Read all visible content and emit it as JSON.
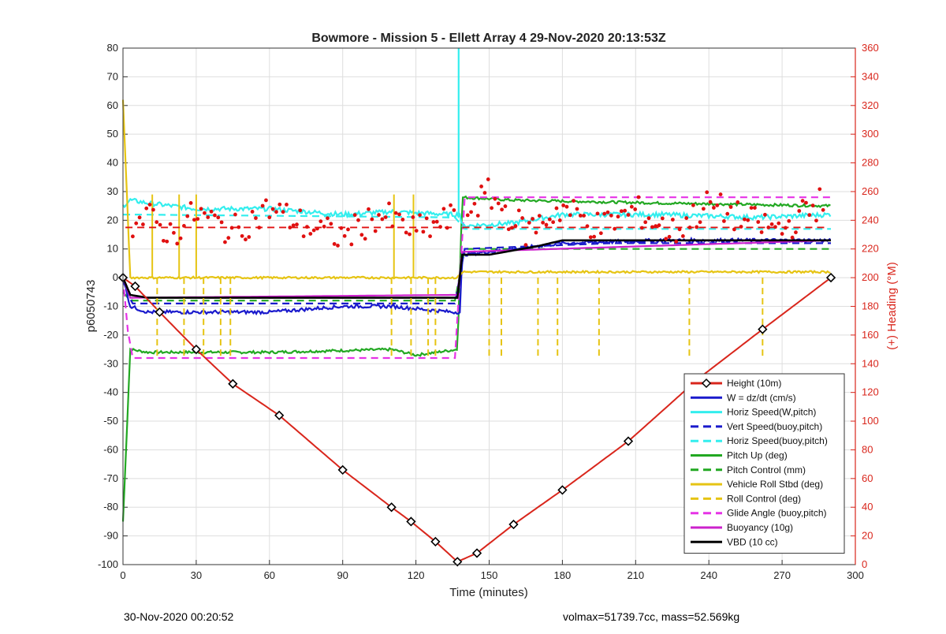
{
  "footer": {
    "timestamp": "30-Nov-2020 00:20:52",
    "stats": "volmax=51739.7cc, mass=52.569kg"
  },
  "chart_data": {
    "type": "line",
    "title": "Bowmore - Mission 5 - Ellett Array 4 29-Nov-2020 20:13:53Z",
    "xlabel": "Time (minutes)",
    "ylabel": "p6050743",
    "ylabel_right": "(+) Heading (°M)",
    "xlim": [
      0,
      300
    ],
    "ylim": [
      -100,
      80
    ],
    "ylim_right": [
      0,
      360
    ],
    "xticks": [
      0,
      30,
      60,
      90,
      120,
      150,
      180,
      210,
      240,
      270,
      300
    ],
    "yticks": [
      -100,
      -90,
      -80,
      -70,
      -60,
      -50,
      -40,
      -30,
      -20,
      -10,
      0,
      10,
      20,
      30,
      40,
      50,
      60,
      70,
      80
    ],
    "yticks_right": [
      0,
      20,
      40,
      60,
      80,
      100,
      120,
      140,
      160,
      180,
      200,
      220,
      240,
      260,
      280,
      300,
      320,
      340,
      360
    ],
    "grid": true,
    "legend_position": "bottom-right",
    "colors": {
      "height": "#d9261c",
      "w": "#1a1acc",
      "horiz_speed": "#33eeee",
      "pitch": "#22a822",
      "roll": "#e6c413",
      "glide": "#e633e6",
      "buoyancy": "#cc22cc",
      "vbd": "#000000",
      "heading": "#e01010",
      "right_axis": "#d9261c"
    },
    "legend": [
      {
        "label": "Height (10m)",
        "color": "#d9261c",
        "dash": false,
        "marker": true
      },
      {
        "label": "W = dz/dt (cm/s)",
        "color": "#1a1acc",
        "dash": false
      },
      {
        "label": "Horiz Speed(W,pitch)",
        "color": "#33eeee",
        "dash": false
      },
      {
        "label": "Vert Speed(buoy,pitch)",
        "color": "#1a1acc",
        "dash": true
      },
      {
        "label": "Horiz Speed(buoy,pitch)",
        "color": "#33eeee",
        "dash": true
      },
      {
        "label": "Pitch Up (deg)",
        "color": "#22a822",
        "dash": false
      },
      {
        "label": "Pitch Control (mm)",
        "color": "#22a822",
        "dash": true
      },
      {
        "label": "Vehicle Roll Stbd (deg)",
        "color": "#e6c413",
        "dash": false
      },
      {
        "label": "Roll Control (deg)",
        "color": "#e6c413",
        "dash": true
      },
      {
        "label": "Glide Angle (buoy,pitch)",
        "color": "#e633e6",
        "dash": true
      },
      {
        "label": "Buoyancy (10g)",
        "color": "#cc22cc",
        "dash": false
      },
      {
        "label": "VBD (10 cc)",
        "color": "#000000",
        "dash": false
      }
    ],
    "series": {
      "height": {
        "x": [
          0,
          5,
          15,
          30,
          45,
          64,
          90,
          110,
          118,
          128,
          137,
          145,
          160,
          180,
          207,
          236,
          262,
          290
        ],
        "y": [
          0,
          -3,
          -12,
          -25,
          -37,
          -48,
          -67,
          -80,
          -85,
          -92,
          -99,
          -96,
          -86,
          -74,
          -57,
          -35,
          -18,
          0
        ]
      },
      "w": {
        "x": [
          0,
          3,
          10,
          30,
          60,
          90,
          110,
          135,
          138,
          139,
          160,
          180,
          220,
          260,
          290
        ],
        "y": [
          0,
          -10,
          -12,
          -12,
          -12,
          -10,
          -10,
          -12,
          -12,
          8,
          10,
          12,
          13,
          13,
          13
        ]
      },
      "horiz_speed": {
        "x": [
          0,
          3,
          10,
          30,
          60,
          90,
          110,
          135,
          138,
          139,
          160,
          180,
          220,
          260,
          290
        ],
        "y": [
          25,
          27,
          26,
          24,
          24,
          22,
          23,
          22,
          22,
          18,
          19,
          22,
          22,
          21,
          22
        ]
      },
      "vert_speed_buoy": {
        "x": [
          0,
          3,
          137,
          139,
          200,
          290
        ],
        "y": [
          0,
          -9,
          -9,
          10,
          12,
          12
        ]
      },
      "horiz_speed_buoy": {
        "x": [
          0,
          3,
          137,
          139,
          290
        ],
        "y": [
          22,
          22,
          21,
          17,
          17
        ]
      },
      "pitch": {
        "x": [
          0,
          3,
          10,
          60,
          110,
          120,
          137,
          139,
          160,
          220,
          290
        ],
        "y": [
          -85,
          -25,
          -26,
          -26,
          -25,
          -27,
          -25,
          28,
          27,
          26,
          25
        ]
      },
      "pitch_control": {
        "x": [
          0,
          3,
          137,
          139,
          290
        ],
        "y": [
          -5,
          -8,
          -8,
          10,
          10
        ]
      },
      "roll": {
        "x": [
          0,
          3,
          137,
          139,
          290
        ],
        "y": [
          62,
          0,
          0,
          2,
          2
        ]
      },
      "glide": {
        "x": [
          0,
          3,
          137,
          139,
          290
        ],
        "y": [
          0,
          -28,
          -28,
          28,
          28
        ]
      },
      "buoyancy": {
        "x": [
          0,
          3,
          137,
          139,
          290
        ],
        "y": [
          0,
          -7,
          -6,
          9,
          13
        ]
      },
      "vbd": {
        "x": [
          0,
          3,
          10,
          137,
          139,
          150,
          170,
          180,
          290
        ],
        "y": [
          0,
          -6,
          -7,
          -7,
          8,
          8,
          11,
          13,
          13
        ]
      },
      "heading": {
        "x": [
          4,
          10,
          20,
          30,
          45,
          60,
          75,
          90,
          105,
          120,
          135,
          150,
          165,
          180,
          195,
          210,
          225,
          240,
          255,
          270,
          285
        ],
        "y": [
          237,
          242,
          230,
          245,
          232,
          248,
          236,
          228,
          244,
          232,
          241,
          258,
          232,
          249,
          235,
          247,
          231,
          251,
          240,
          233,
          252
        ]
      }
    }
  }
}
